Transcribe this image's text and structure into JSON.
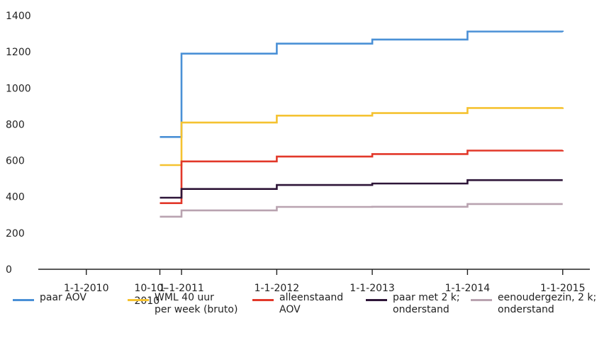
{
  "chart_data": {
    "type": "line",
    "step": true,
    "title": "",
    "xlabel": "",
    "ylabel": "",
    "ylim": [
      0,
      1400
    ],
    "y_ticks": [
      0,
      200,
      400,
      600,
      800,
      1000,
      1200,
      1400
    ],
    "y_tick_labels": [
      "0",
      "200",
      "400",
      "600",
      "800",
      "1000",
      "1200",
      "1400"
    ],
    "x_ticks": [
      {
        "date": "2010-01-01",
        "label": "1-1-2010"
      },
      {
        "date": "2010-10-10",
        "label": "10-10-\n2010"
      },
      {
        "date": "2011-01-01",
        "label": "1-1-2011"
      },
      {
        "date": "2012-01-01",
        "label": "1-1-2012"
      },
      {
        "date": "2013-01-01",
        "label": "1-1-2013"
      },
      {
        "date": "2014-01-01",
        "label": "1-1-2014"
      },
      {
        "date": "2015-01-01",
        "label": "1-1-2015"
      }
    ],
    "xlim": [
      "2009-07-01",
      "2015-04-15"
    ],
    "grid": false,
    "legend_position": "bottom",
    "series": [
      {
        "name": "paar AOV",
        "color": "#4a90d6",
        "points": [
          [
            "2010-10-10",
            730
          ],
          [
            "2011-01-01",
            1190
          ],
          [
            "2012-01-01",
            1245
          ],
          [
            "2013-01-01",
            1268
          ],
          [
            "2014-01-01",
            1312
          ],
          [
            "2015-01-01",
            1310
          ]
        ]
      },
      {
        "name": "WML 40 uur\nper week (bruto)",
        "color": "#f5c230",
        "points": [
          [
            "2010-10-10",
            575
          ],
          [
            "2011-01-01",
            810
          ],
          [
            "2012-01-01",
            848
          ],
          [
            "2013-01-01",
            862
          ],
          [
            "2014-01-01",
            890
          ],
          [
            "2015-01-01",
            893
          ]
        ]
      },
      {
        "name": "alleenstaand\nAOV",
        "color": "#e2382a",
        "points": [
          [
            "2010-10-10",
            365
          ],
          [
            "2011-01-01",
            595
          ],
          [
            "2012-01-01",
            622
          ],
          [
            "2013-01-01",
            636
          ],
          [
            "2014-01-01",
            655
          ],
          [
            "2015-01-01",
            657
          ]
        ]
      },
      {
        "name": "paar met 2 k;\nonderstand",
        "color": "#2e1538",
        "points": [
          [
            "2010-10-10",
            395
          ],
          [
            "2011-01-01",
            443
          ],
          [
            "2012-01-01",
            465
          ],
          [
            "2013-01-01",
            473
          ],
          [
            "2014-01-01",
            492
          ],
          [
            "2015-01-01",
            492
          ]
        ]
      },
      {
        "name": "eenoudergezin, 2 k;\nonderstand",
        "color": "#b9a3b0",
        "points": [
          [
            "2010-10-10",
            290
          ],
          [
            "2011-01-01",
            325
          ],
          [
            "2012-01-01",
            344
          ],
          [
            "2013-01-01",
            345
          ],
          [
            "2014-01-01",
            360
          ],
          [
            "2015-01-01",
            360
          ]
        ]
      }
    ]
  }
}
